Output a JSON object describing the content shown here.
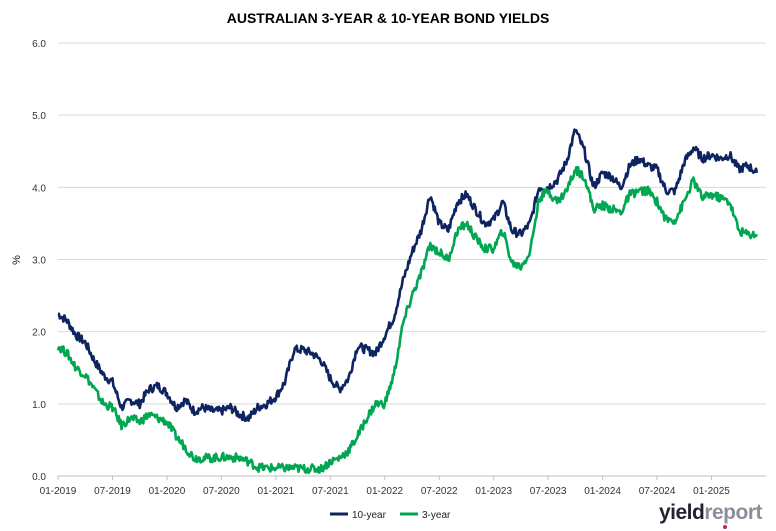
{
  "chart_data": {
    "type": "line",
    "title": "AUSTRALIAN 3-YEAR & 10-YEAR BOND YIELDS",
    "ylabel": "%",
    "xlabel": "",
    "ylim": [
      0,
      6
    ],
    "y_ticks": [
      "0.0",
      "1.0",
      "2.0",
      "3.0",
      "4.0",
      "5.0",
      "6.0"
    ],
    "x_ticks": [
      "01-2019",
      "07-2019",
      "01-2020",
      "07-2020",
      "01-2021",
      "07-2021",
      "01-2022",
      "07-2022",
      "01-2023",
      "07-2023",
      "01-2024",
      "07-2024",
      "01-2025"
    ],
    "x_range": [
      "2019-01",
      "2025-07"
    ],
    "grid": true,
    "legend_position": "bottom-center",
    "series": [
      {
        "name": "10-year",
        "color": "#0d2461",
        "points": [
          [
            "2019-01",
            2.25
          ],
          [
            "2019-02",
            2.15
          ],
          [
            "2019-03",
            1.95
          ],
          [
            "2019-04",
            1.85
          ],
          [
            "2019-05",
            1.6
          ],
          [
            "2019-06",
            1.4
          ],
          [
            "2019-07",
            1.3
          ],
          [
            "2019-08",
            0.95
          ],
          [
            "2019-09",
            1.05
          ],
          [
            "2019-10",
            1.0
          ],
          [
            "2019-11",
            1.2
          ],
          [
            "2019-12",
            1.25
          ],
          [
            "2020-01",
            1.15
          ],
          [
            "2020-02",
            0.95
          ],
          [
            "2020-03",
            1.05
          ],
          [
            "2020-04",
            0.9
          ],
          [
            "2020-05",
            0.95
          ],
          [
            "2020-06",
            0.9
          ],
          [
            "2020-07",
            0.9
          ],
          [
            "2020-08",
            0.95
          ],
          [
            "2020-09",
            0.85
          ],
          [
            "2020-10",
            0.8
          ],
          [
            "2020-11",
            0.95
          ],
          [
            "2020-12",
            1.0
          ],
          [
            "2021-01",
            1.1
          ],
          [
            "2021-02",
            1.3
          ],
          [
            "2021-03",
            1.75
          ],
          [
            "2021-04",
            1.75
          ],
          [
            "2021-05",
            1.7
          ],
          [
            "2021-06",
            1.6
          ],
          [
            "2021-07",
            1.35
          ],
          [
            "2021-08",
            1.2
          ],
          [
            "2021-09",
            1.35
          ],
          [
            "2021-10",
            1.8
          ],
          [
            "2021-11",
            1.75
          ],
          [
            "2021-12",
            1.7
          ],
          [
            "2022-01",
            1.95
          ],
          [
            "2022-02",
            2.2
          ],
          [
            "2022-03",
            2.7
          ],
          [
            "2022-04",
            3.1
          ],
          [
            "2022-05",
            3.4
          ],
          [
            "2022-06",
            3.9
          ],
          [
            "2022-07",
            3.5
          ],
          [
            "2022-08",
            3.4
          ],
          [
            "2022-09",
            3.8
          ],
          [
            "2022-10",
            3.9
          ],
          [
            "2022-11",
            3.7
          ],
          [
            "2022-12",
            3.5
          ],
          [
            "2023-01",
            3.55
          ],
          [
            "2023-02",
            3.8
          ],
          [
            "2023-03",
            3.4
          ],
          [
            "2023-04",
            3.35
          ],
          [
            "2023-05",
            3.5
          ],
          [
            "2023-06",
            4.0
          ],
          [
            "2023-07",
            4.0
          ],
          [
            "2023-08",
            4.1
          ],
          [
            "2023-09",
            4.35
          ],
          [
            "2023-10",
            4.8
          ],
          [
            "2023-11",
            4.5
          ],
          [
            "2023-12",
            4.0
          ],
          [
            "2024-01",
            4.2
          ],
          [
            "2024-02",
            4.15
          ],
          [
            "2024-03",
            4.0
          ],
          [
            "2024-04",
            4.3
          ],
          [
            "2024-05",
            4.4
          ],
          [
            "2024-06",
            4.3
          ],
          [
            "2024-07",
            4.25
          ],
          [
            "2024-08",
            3.95
          ],
          [
            "2024-09",
            3.95
          ],
          [
            "2024-10",
            4.35
          ],
          [
            "2024-11",
            4.55
          ],
          [
            "2024-12",
            4.4
          ],
          [
            "2025-01",
            4.45
          ],
          [
            "2025-02",
            4.4
          ],
          [
            "2025-03",
            4.45
          ],
          [
            "2025-04",
            4.25
          ],
          [
            "2025-05",
            4.3
          ],
          [
            "2025-06",
            4.2
          ]
        ]
      },
      {
        "name": "3-year",
        "color": "#00a651",
        "points": [
          [
            "2019-01",
            1.8
          ],
          [
            "2019-02",
            1.7
          ],
          [
            "2019-03",
            1.5
          ],
          [
            "2019-04",
            1.4
          ],
          [
            "2019-05",
            1.2
          ],
          [
            "2019-06",
            1.0
          ],
          [
            "2019-07",
            0.95
          ],
          [
            "2019-08",
            0.7
          ],
          [
            "2019-09",
            0.8
          ],
          [
            "2019-10",
            0.75
          ],
          [
            "2019-11",
            0.85
          ],
          [
            "2019-12",
            0.8
          ],
          [
            "2020-01",
            0.75
          ],
          [
            "2020-02",
            0.55
          ],
          [
            "2020-03",
            0.4
          ],
          [
            "2020-04",
            0.25
          ],
          [
            "2020-05",
            0.25
          ],
          [
            "2020-06",
            0.25
          ],
          [
            "2020-07",
            0.26
          ],
          [
            "2020-08",
            0.26
          ],
          [
            "2020-09",
            0.25
          ],
          [
            "2020-10",
            0.2
          ],
          [
            "2020-11",
            0.12
          ],
          [
            "2020-12",
            0.11
          ],
          [
            "2021-01",
            0.11
          ],
          [
            "2021-02",
            0.11
          ],
          [
            "2021-03",
            0.11
          ],
          [
            "2021-04",
            0.1
          ],
          [
            "2021-05",
            0.1
          ],
          [
            "2021-06",
            0.1
          ],
          [
            "2021-07",
            0.2
          ],
          [
            "2021-08",
            0.25
          ],
          [
            "2021-09",
            0.35
          ],
          [
            "2021-10",
            0.55
          ],
          [
            "2021-11",
            0.8
          ],
          [
            "2021-12",
            1.0
          ],
          [
            "2022-01",
            1.0
          ],
          [
            "2022-02",
            1.4
          ],
          [
            "2022-03",
            2.1
          ],
          [
            "2022-04",
            2.5
          ],
          [
            "2022-05",
            2.8
          ],
          [
            "2022-06",
            3.2
          ],
          [
            "2022-07",
            3.1
          ],
          [
            "2022-08",
            3.0
          ],
          [
            "2022-09",
            3.4
          ],
          [
            "2022-10",
            3.5
          ],
          [
            "2022-11",
            3.3
          ],
          [
            "2022-12",
            3.15
          ],
          [
            "2023-01",
            3.15
          ],
          [
            "2023-02",
            3.4
          ],
          [
            "2023-03",
            2.95
          ],
          [
            "2023-04",
            2.9
          ],
          [
            "2023-05",
            3.1
          ],
          [
            "2023-06",
            3.85
          ],
          [
            "2023-07",
            3.95
          ],
          [
            "2023-08",
            3.8
          ],
          [
            "2023-09",
            3.95
          ],
          [
            "2023-10",
            4.25
          ],
          [
            "2023-11",
            4.15
          ],
          [
            "2023-12",
            3.7
          ],
          [
            "2024-01",
            3.75
          ],
          [
            "2024-02",
            3.7
          ],
          [
            "2024-03",
            3.65
          ],
          [
            "2024-04",
            3.9
          ],
          [
            "2024-05",
            3.95
          ],
          [
            "2024-06",
            3.95
          ],
          [
            "2024-07",
            3.8
          ],
          [
            "2024-08",
            3.55
          ],
          [
            "2024-09",
            3.55
          ],
          [
            "2024-10",
            3.8
          ],
          [
            "2024-11",
            4.1
          ],
          [
            "2024-12",
            3.85
          ],
          [
            "2025-01",
            3.9
          ],
          [
            "2025-02",
            3.85
          ],
          [
            "2025-03",
            3.8
          ],
          [
            "2025-04",
            3.4
          ],
          [
            "2025-05",
            3.35
          ],
          [
            "2025-06",
            3.35
          ]
        ]
      }
    ]
  },
  "logo": {
    "part1": "yield",
    "part2": "report"
  }
}
